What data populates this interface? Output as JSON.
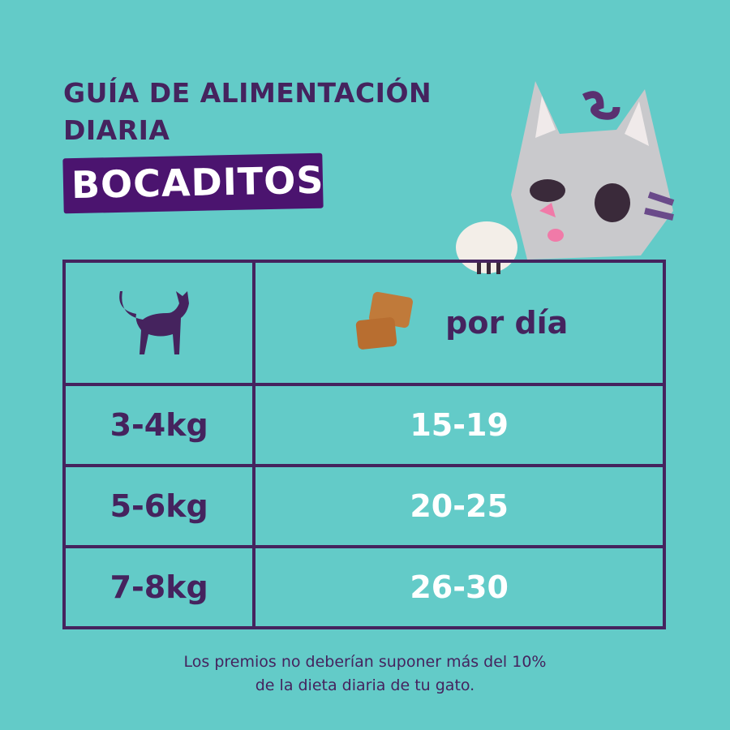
{
  "header": {
    "title_line1": "GUÍA DE ALIMENTACIÓN",
    "title_line2": "DIARIA",
    "badge": "BOCADITOS"
  },
  "table": {
    "col_icon_left": "cat-silhouette-icon",
    "col_icon_right": "treat-icon",
    "col_right_label": "por día",
    "rows": [
      {
        "weight": "3-4kg",
        "treats": "15-19"
      },
      {
        "weight": "5-6kg",
        "treats": "20-25"
      },
      {
        "weight": "7-8kg",
        "treats": "26-30"
      }
    ]
  },
  "footer": {
    "line1": "Los premios no deberían suponer más del 10%",
    "line2": "de la dieta diaria de tu gato."
  },
  "colors": {
    "background": "#63cbc8",
    "purple": "#45235e",
    "badge": "#4b146f"
  }
}
